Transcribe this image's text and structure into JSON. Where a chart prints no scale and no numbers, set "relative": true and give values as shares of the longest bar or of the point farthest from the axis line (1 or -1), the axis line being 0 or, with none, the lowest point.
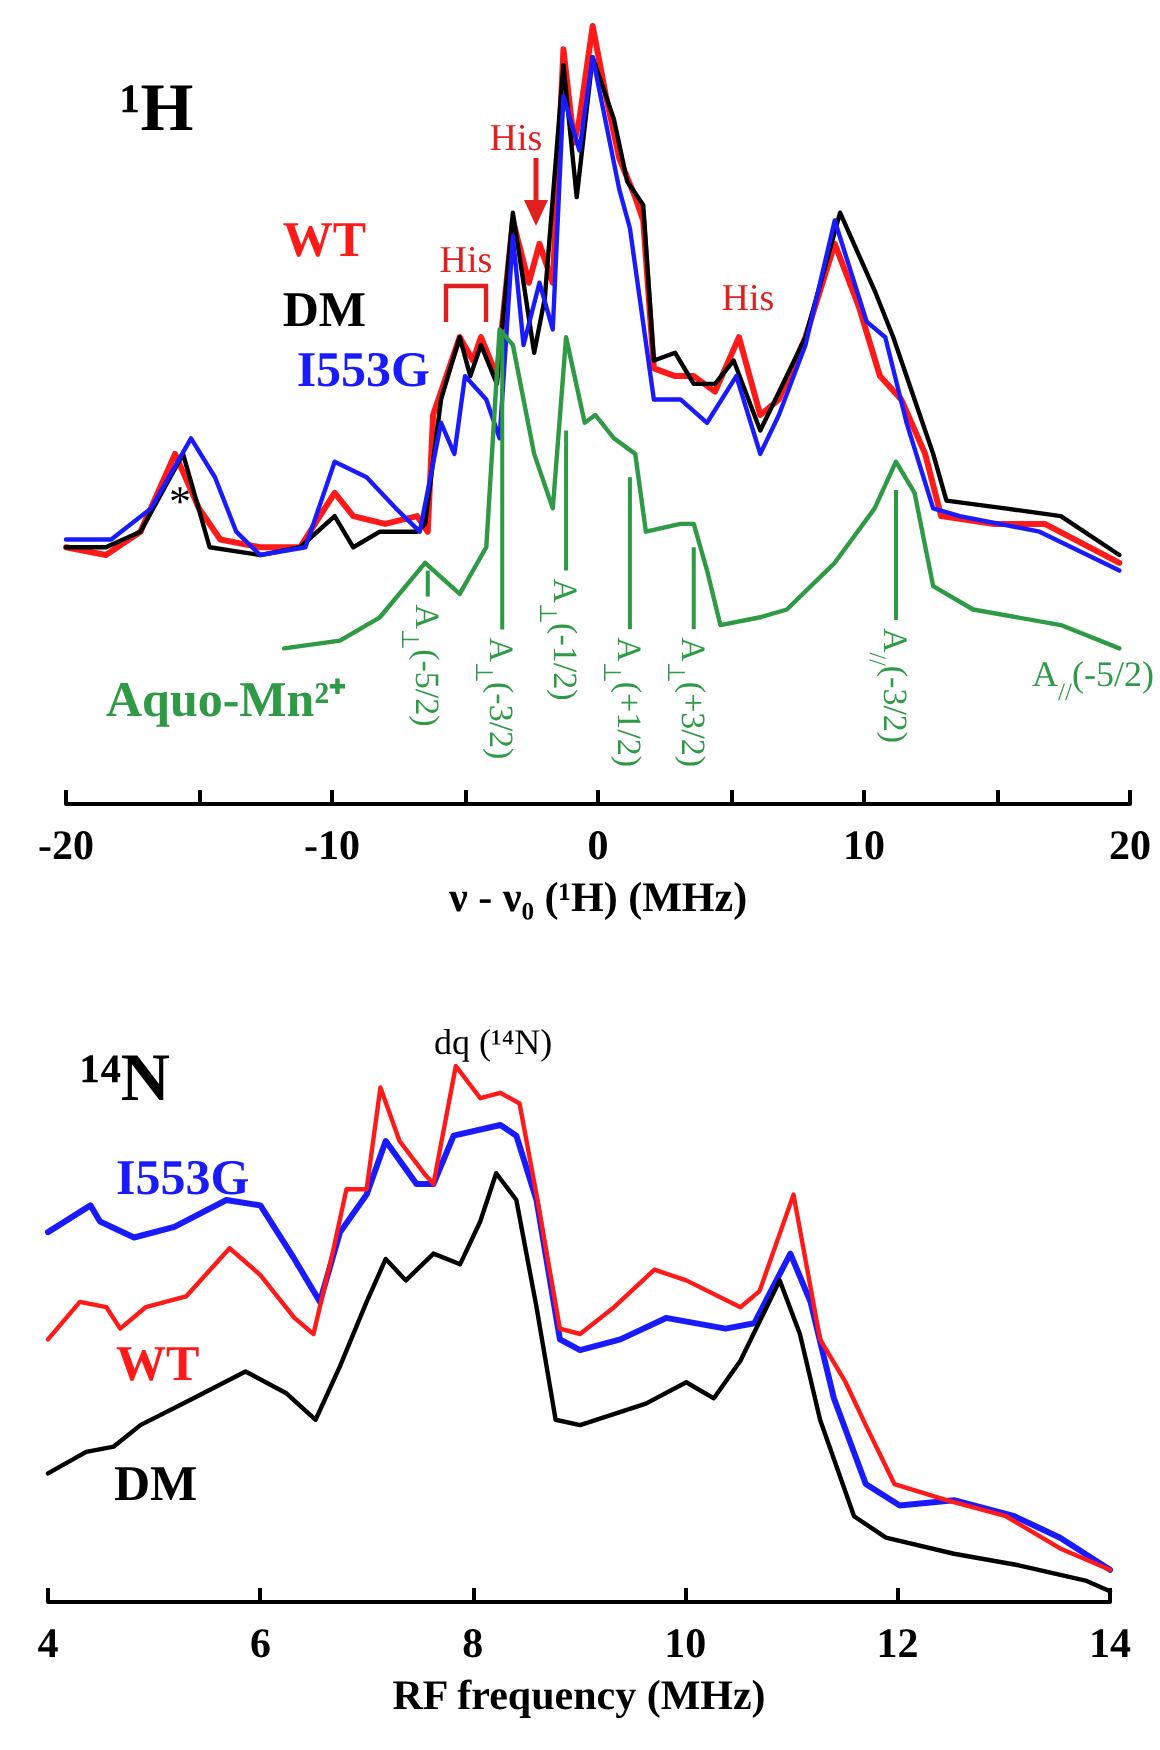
{
  "chart_data": [
    {
      "type": "line",
      "title": "¹H",
      "xlabel": "ν - ν₀ (¹H) (MHz)",
      "relative": true,
      "tick_labels": "x",
      "xlim": [
        -20,
        20
      ],
      "xticks": [
        -20,
        {
          "value": -15,
          "label": null
        },
        -10,
        {
          "value": -5,
          "label": null
        },
        0,
        {
          "value": 5,
          "label": null
        },
        10,
        {
          "value": 15,
          "label": null
        },
        20
      ],
      "series": [
        {
          "name": "WT",
          "color": "#ff1a1a",
          "x": [
            -20,
            -18.5,
            -17.2,
            -15.9,
            -15.0,
            -14.2,
            -12.7,
            -11.2,
            -9.9,
            -9.2,
            -8.0,
            -6.8,
            -6.4,
            -6.2,
            -5.2,
            -4.7,
            -4.4,
            -3.8,
            -3.2,
            -2.6,
            -2.2,
            -1.7,
            -1.3,
            -0.9,
            -0.7,
            -0.2,
            0.3,
            0.8,
            1.4,
            1.7,
            2.1,
            2.9,
            3.6,
            4.4,
            5.3,
            6.1,
            6.8,
            7.8,
            8.9,
            9.8,
            10.6,
            11.4,
            12.3,
            12.9,
            14.9,
            16.8,
            19.6
          ],
          "values": [
            0.33,
            0.32,
            0.35,
            0.45,
            0.38,
            0.34,
            0.33,
            0.33,
            0.4,
            0.37,
            0.36,
            0.37,
            0.35,
            0.5,
            0.6,
            0.57,
            0.6,
            0.55,
            0.75,
            0.67,
            0.72,
            0.67,
            0.97,
            0.85,
            0.88,
            1.0,
            0.91,
            0.83,
            0.78,
            0.75,
            0.56,
            0.55,
            0.55,
            0.53,
            0.6,
            0.5,
            0.52,
            0.6,
            0.72,
            0.64,
            0.55,
            0.52,
            0.45,
            0.37,
            0.36,
            0.36,
            0.31
          ]
        },
        {
          "name": "DM",
          "color": "#000000",
          "x": [
            -20,
            -18.5,
            -17.2,
            -15.6,
            -14.6,
            -12.7,
            -11.2,
            -9.9,
            -9.2,
            -8.2,
            -6.8,
            -6.5,
            -5.9,
            -5.2,
            -4.8,
            -4.4,
            -3.8,
            -3.2,
            -2.4,
            -2.0,
            -1.3,
            -0.8,
            -0.2,
            0.6,
            1.1,
            1.7,
            2.1,
            2.9,
            3.6,
            4.4,
            5.1,
            6.1,
            7.8,
            9.1,
            10.4,
            11.1,
            11.9,
            12.6,
            13.1,
            15.3,
            17.4,
            19.6
          ],
          "values": [
            0.33,
            0.33,
            0.35,
            0.45,
            0.33,
            0.32,
            0.33,
            0.37,
            0.33,
            0.35,
            0.35,
            0.36,
            0.52,
            0.6,
            0.55,
            0.59,
            0.54,
            0.76,
            0.58,
            0.65,
            0.95,
            0.78,
            0.96,
            0.88,
            0.8,
            0.77,
            0.57,
            0.58,
            0.54,
            0.54,
            0.57,
            0.48,
            0.6,
            0.76,
            0.66,
            0.6,
            0.52,
            0.45,
            0.39,
            0.38,
            0.37,
            0.32
          ]
        },
        {
          "name": "I553G",
          "color": "#1a1aff",
          "x": [
            -20,
            -18.3,
            -16.8,
            -15.3,
            -14.4,
            -13.6,
            -12.7,
            -11.0,
            -9.9,
            -8.7,
            -7.6,
            -6.7,
            -5.9,
            -5.4,
            -5.0,
            -4.2,
            -3.7,
            -3.2,
            -2.8,
            -2.2,
            -1.7,
            -1.3,
            -0.7,
            -0.2,
            0.8,
            1.2,
            2.1,
            3.1,
            4.1,
            5.2,
            6.1,
            6.8,
            7.8,
            8.9,
            10.1,
            10.8,
            11.6,
            12.6,
            13.6,
            16.6,
            19.6
          ],
          "values": [
            0.34,
            0.34,
            0.38,
            0.47,
            0.42,
            0.35,
            0.32,
            0.33,
            0.44,
            0.42,
            0.38,
            0.35,
            0.49,
            0.45,
            0.55,
            0.52,
            0.47,
            0.73,
            0.59,
            0.67,
            0.61,
            0.91,
            0.84,
            0.96,
            0.79,
            0.74,
            0.52,
            0.52,
            0.49,
            0.55,
            0.45,
            0.5,
            0.59,
            0.75,
            0.62,
            0.6,
            0.49,
            0.38,
            0.37,
            0.35,
            0.3
          ]
        },
        {
          "name": "Aquo-Mn²⁺",
          "color": "#2f9a45",
          "x": [
            -11.8,
            -9.7,
            -8.2,
            -6.5,
            -5.2,
            -4.2,
            -3.7,
            -3.2,
            -2.4,
            -1.7,
            -1.2,
            -0.5,
            -0.1,
            0.6,
            1.4,
            1.8,
            3.1,
            3.6,
            4.1,
            4.6,
            6.1,
            7.1,
            8.9,
            10.4,
            11.2,
            11.9,
            12.6,
            14.1,
            17.4,
            19.6
          ],
          "values": [
            0.2,
            0.21,
            0.24,
            0.31,
            0.27,
            0.33,
            0.61,
            0.59,
            0.45,
            0.38,
            0.6,
            0.49,
            0.5,
            0.47,
            0.45,
            0.35,
            0.36,
            0.36,
            0.3,
            0.23,
            0.24,
            0.25,
            0.31,
            0.38,
            0.44,
            0.4,
            0.28,
            0.25,
            0.23,
            0.2
          ]
        }
      ],
      "annotations": [
        "*",
        "His",
        "His",
        "His",
        {
          "text": "A$_{⊥}$(-5/2)",
          "x": -6.4,
          "y": 0.3
        },
        {
          "text": "A$_{⊥}$(-3/2)",
          "x": -3.6,
          "y": 0.61
        },
        {
          "text": "A$_{⊥}$(-1/2)",
          "x": -1.2,
          "y": 0.48
        },
        {
          "text": "A$_{⊥}$(+1/2)",
          "x": 1.2,
          "y": 0.42
        },
        {
          "text": "A$_{⊥}$(+3/2)",
          "x": 3.6,
          "y": 0.33
        },
        "A$_{//}$(-5/2)",
        "A$_{//}$(-3/2)"
      ]
    },
    {
      "type": "line",
      "title": "¹⁴N",
      "xlabel": "RF frequency (MHz)",
      "relative": true,
      "tick_labels": "x",
      "xlim": [
        4,
        14
      ],
      "xticks": [
        4,
        6,
        8,
        10,
        12,
        14
      ],
      "series": [
        {
          "name": "I553G",
          "color": "#1a1aff",
          "x": [
            4.0,
            4.4,
            4.49,
            4.81,
            5.19,
            5.68,
            6.0,
            6.32,
            6.56,
            6.75,
            7.0,
            7.18,
            7.47,
            7.63,
            7.82,
            8.26,
            8.41,
            8.6,
            8.82,
            9.01,
            9.39,
            9.82,
            10.38,
            10.65,
            10.99,
            11.18,
            11.4,
            11.7,
            12.02,
            12.53,
            13.1,
            13.53,
            14.0
          ],
          "values": [
            0.69,
            0.74,
            0.71,
            0.68,
            0.7,
            0.75,
            0.74,
            0.64,
            0.56,
            0.69,
            0.76,
            0.86,
            0.78,
            0.78,
            0.87,
            0.89,
            0.87,
            0.75,
            0.49,
            0.47,
            0.49,
            0.53,
            0.51,
            0.52,
            0.65,
            0.56,
            0.38,
            0.22,
            0.18,
            0.19,
            0.16,
            0.12,
            0.06
          ]
        },
        {
          "name": "WT",
          "color": "#ff1a1a",
          "x": [
            4.0,
            4.3,
            4.55,
            4.68,
            4.92,
            5.3,
            5.71,
            6.0,
            6.32,
            6.5,
            6.69,
            6.81,
            7.0,
            7.13,
            7.31,
            7.54,
            7.63,
            7.84,
            8.07,
            8.26,
            8.44,
            8.6,
            8.82,
            9.01,
            9.33,
            9.71,
            10.01,
            10.52,
            10.7,
            11.02,
            11.27,
            11.51,
            11.7,
            11.97,
            12.46,
            13.02,
            13.53,
            14.0
          ],
          "values": [
            0.49,
            0.56,
            0.55,
            0.51,
            0.55,
            0.57,
            0.66,
            0.61,
            0.53,
            0.5,
            0.66,
            0.77,
            0.77,
            0.96,
            0.86,
            0.8,
            0.78,
            1.0,
            0.94,
            0.95,
            0.93,
            0.76,
            0.51,
            0.5,
            0.55,
            0.62,
            0.6,
            0.55,
            0.58,
            0.76,
            0.49,
            0.41,
            0.33,
            0.22,
            0.19,
            0.16,
            0.1,
            0.06
          ]
        },
        {
          "name": "DM",
          "color": "#000000",
          "x": [
            4.0,
            4.36,
            4.62,
            4.87,
            5.37,
            5.86,
            6.24,
            6.52,
            6.75,
            7.0,
            7.18,
            7.37,
            7.63,
            7.88,
            8.07,
            8.22,
            8.41,
            8.6,
            8.78,
            9.01,
            9.63,
            10.01,
            10.27,
            10.52,
            10.89,
            11.08,
            11.27,
            11.59,
            11.89,
            12.53,
            13.1,
            13.77,
            14.0
          ],
          "values": [
            0.24,
            0.28,
            0.29,
            0.33,
            0.38,
            0.43,
            0.39,
            0.34,
            0.44,
            0.56,
            0.64,
            0.6,
            0.65,
            0.63,
            0.71,
            0.8,
            0.75,
            0.55,
            0.34,
            0.33,
            0.37,
            0.41,
            0.38,
            0.45,
            0.6,
            0.5,
            0.34,
            0.16,
            0.12,
            0.09,
            0.07,
            0.04,
            0.02
          ]
        }
      ],
      "annotations": [
        "dq (¹⁴N)"
      ]
    }
  ]
}
